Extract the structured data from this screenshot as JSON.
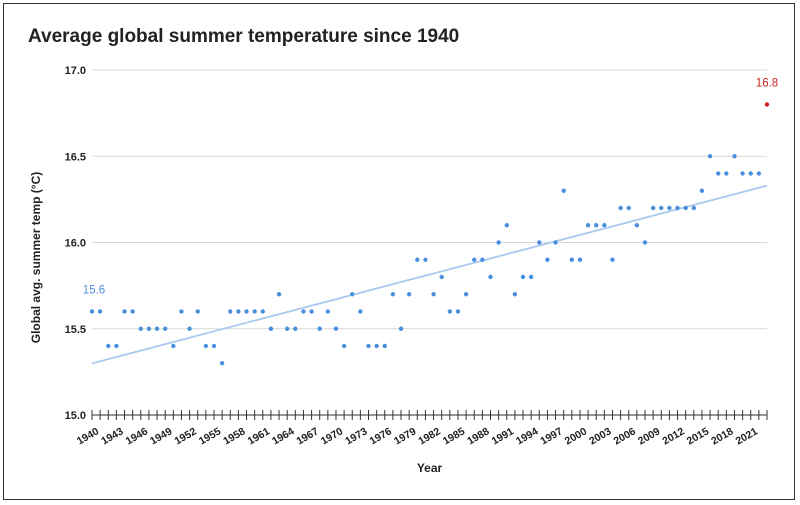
{
  "chart_data": {
    "type": "scatter",
    "title": "Average global summer temperature since 1940",
    "xlabel": "Year",
    "ylabel": "Global avg. summer temp (°C)",
    "ylim": [
      15.0,
      17.0
    ],
    "yticks": [
      "15.0",
      "15.5",
      "16.0",
      "16.5",
      "17.0"
    ],
    "xlim": [
      1940,
      2023
    ],
    "xtick_labels": [
      "1940",
      "1943",
      "1946",
      "1949",
      "1952",
      "1955",
      "1958",
      "1961",
      "1964",
      "1967",
      "1970",
      "1973",
      "1976",
      "1979",
      "1982",
      "1985",
      "1988",
      "1991",
      "1994",
      "1997",
      "2000",
      "2003",
      "2006",
      "2009",
      "2012",
      "2015",
      "2018",
      "2021"
    ],
    "grid": "horizontal",
    "colors": {
      "points": "#4a8fdd",
      "highlight": "#cc2222",
      "trendline": "#a9c9ef",
      "first_label": "#4a8fdd",
      "last_label": "#cc2222"
    },
    "series": [
      {
        "x": [
          1940,
          1941,
          1942,
          1943,
          1944,
          1945,
          1946,
          1947,
          1948,
          1949,
          1950,
          1951,
          1952,
          1953,
          1954,
          1955,
          1956,
          1957,
          1958,
          1959,
          1960,
          1961,
          1962,
          1963,
          1964,
          1965,
          1966,
          1967,
          1968,
          1969,
          1970,
          1971,
          1972,
          1973,
          1974,
          1975,
          1976,
          1977,
          1978,
          1979,
          1980,
          1981,
          1982,
          1983,
          1984,
          1985,
          1986,
          1987,
          1988,
          1989,
          1990,
          1991,
          1992,
          1993,
          1994,
          1995,
          1996,
          1997,
          1998,
          1999,
          2000,
          2001,
          2002,
          2003,
          2004,
          2005,
          2006,
          2007,
          2008,
          2009,
          2010,
          2011,
          2012,
          2013,
          2014,
          2015,
          2016,
          2017,
          2018,
          2019,
          2020,
          2021,
          2022,
          2023
        ],
        "y": [
          15.6,
          15.6,
          15.4,
          15.4,
          15.6,
          15.6,
          15.5,
          15.5,
          15.5,
          15.5,
          15.4,
          15.6,
          15.5,
          15.6,
          15.4,
          15.4,
          15.3,
          15.6,
          15.6,
          15.6,
          15.6,
          15.6,
          15.5,
          15.7,
          15.5,
          15.5,
          15.6,
          15.6,
          15.5,
          15.6,
          15.5,
          15.4,
          15.7,
          15.6,
          15.4,
          15.4,
          15.4,
          15.7,
          15.5,
          15.7,
          15.9,
          15.9,
          15.7,
          15.8,
          15.6,
          15.6,
          15.7,
          15.9,
          15.9,
          15.8,
          16.0,
          16.1,
          15.7,
          15.8,
          15.8,
          16.0,
          15.9,
          16.0,
          16.3,
          15.9,
          15.9,
          16.1,
          16.1,
          16.1,
          15.9,
          16.2,
          16.2,
          16.1,
          16.0,
          16.2,
          16.2,
          16.2,
          16.2,
          16.2,
          16.2,
          16.3,
          16.5,
          16.4,
          16.4,
          16.5,
          16.4,
          16.4,
          16.4,
          16.8
        ]
      }
    ],
    "trendline": {
      "type": "linear"
    },
    "annotations": [
      {
        "x": 1940,
        "y": 15.6,
        "text": "15.6"
      },
      {
        "x": 2023,
        "y": 16.8,
        "text": "16.8"
      }
    ]
  }
}
